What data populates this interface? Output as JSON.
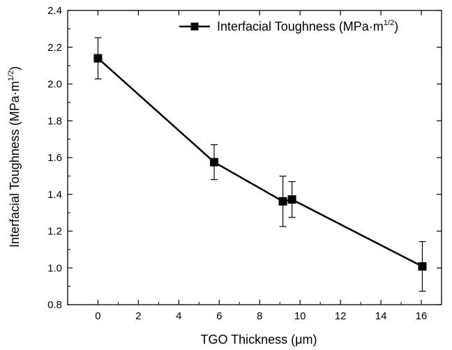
{
  "chart_data": {
    "type": "line",
    "xlabel": "TGO Thickness (μm)",
    "ylabel_main": "Interfacial Toughness (MPa·m",
    "ylabel_sup": "1/2",
    "ylabel_close": ")",
    "xlim": [
      -1.5,
      17
    ],
    "ylim": [
      0.8,
      2.4
    ],
    "xticks": [
      "0",
      "2",
      "4",
      "6",
      "8",
      "10",
      "12",
      "14",
      "16"
    ],
    "yticks": [
      "0.8",
      "1.0",
      "1.2",
      "1.4",
      "1.6",
      "1.8",
      "2.0",
      "2.2",
      "2.4"
    ],
    "grid": false,
    "legend_position": "top-right",
    "series": [
      {
        "name_main": "Interfacial Toughness (MPa·m",
        "name_sup": "1/2",
        "name_close": ")",
        "marker": "square",
        "color": "#000000",
        "x": [
          0,
          5.75,
          9.15,
          9.6,
          16.05
        ],
        "y": [
          2.14,
          1.575,
          1.362,
          1.372,
          1.008
        ],
        "error": [
          0.112,
          0.095,
          0.137,
          0.097,
          0.135
        ]
      }
    ]
  }
}
